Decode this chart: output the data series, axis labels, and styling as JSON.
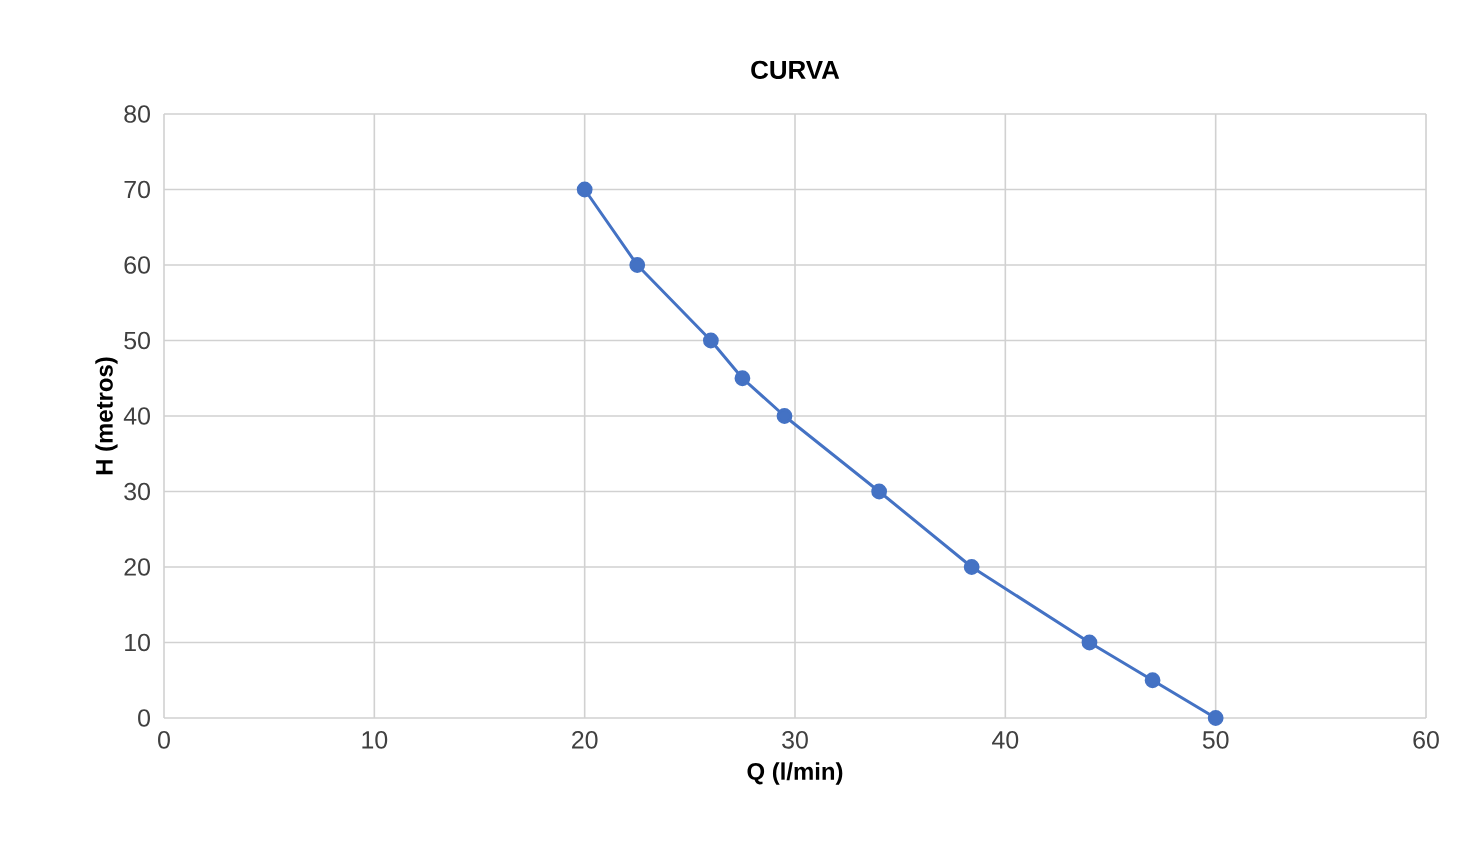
{
  "chart_data": {
    "type": "line",
    "title": "CURVA",
    "xlabel": "Q (l/min)",
    "ylabel": "H (metros)",
    "x": [
      20,
      22.5,
      26,
      27.5,
      29.5,
      34,
      38.4,
      44,
      47,
      50
    ],
    "series": [
      {
        "color": "#4472c4",
        "values": [
          70,
          60,
          50,
          45,
          40,
          30,
          20,
          10,
          5,
          0
        ]
      }
    ],
    "xlim": [
      0,
      60
    ],
    "xticks": [
      0,
      10,
      20,
      30,
      40,
      50,
      60
    ],
    "ylim": [
      0,
      80
    ],
    "yticks": [
      0,
      10,
      20,
      30,
      40,
      50,
      60,
      70,
      80
    ],
    "grid": true,
    "marker": "circle",
    "line_style": "solid"
  }
}
